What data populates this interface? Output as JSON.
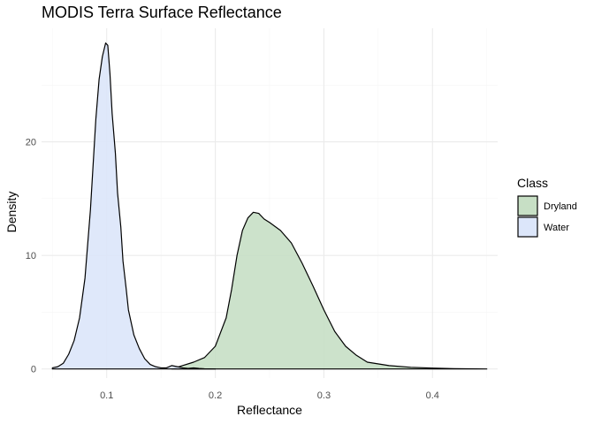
{
  "chart_data": {
    "type": "area",
    "title": "MODIS Terra Surface Reflectance",
    "xlabel": "Reflectance",
    "ylabel": "Density",
    "xlim": [
      0.04,
      0.46
    ],
    "ylim": [
      -0.8,
      30
    ],
    "x_ticks": [
      0.1,
      0.2,
      0.3,
      0.4
    ],
    "x_tick_labels": [
      "0.1",
      "0.2",
      "0.3",
      "0.4"
    ],
    "y_ticks": [
      0,
      10,
      20
    ],
    "y_tick_labels": [
      "0",
      "10",
      "20"
    ],
    "grid": true,
    "legend": {
      "title": "Class",
      "placement": "right",
      "entries": [
        "Dryland",
        "Water"
      ]
    },
    "series": [
      {
        "name": "Dryland",
        "fill": "#c7dfc5",
        "x": [
          0.16,
          0.17,
          0.18,
          0.19,
          0.2,
          0.21,
          0.215,
          0.22,
          0.225,
          0.23,
          0.235,
          0.24,
          0.245,
          0.25,
          0.26,
          0.27,
          0.28,
          0.29,
          0.3,
          0.31,
          0.32,
          0.33,
          0.34,
          0.36,
          0.38,
          0.4,
          0.42,
          0.45
        ],
        "values": [
          0.0,
          0.3,
          0.6,
          1.0,
          2.0,
          4.5,
          7.0,
          10.0,
          12.2,
          13.3,
          13.8,
          13.7,
          13.2,
          12.9,
          12.2,
          11.1,
          9.3,
          7.3,
          5.2,
          3.3,
          2.0,
          1.2,
          0.6,
          0.3,
          0.15,
          0.08,
          0.03,
          0.0
        ]
      },
      {
        "name": "Water",
        "fill": "#dce6fa",
        "x": [
          0.05,
          0.055,
          0.06,
          0.065,
          0.07,
          0.075,
          0.08,
          0.085,
          0.09,
          0.093,
          0.096,
          0.099,
          0.101,
          0.103,
          0.105,
          0.108,
          0.11,
          0.113,
          0.115,
          0.118,
          0.12,
          0.125,
          0.13,
          0.135,
          0.14,
          0.145,
          0.15,
          0.155,
          0.16,
          0.165,
          0.17,
          0.175,
          0.18,
          0.185,
          0.19,
          0.2
        ],
        "values": [
          0.1,
          0.2,
          0.5,
          1.3,
          2.5,
          4.5,
          8.0,
          14.0,
          22.0,
          25.5,
          27.5,
          28.7,
          28.5,
          26.0,
          22.5,
          19.0,
          15.5,
          12.5,
          9.5,
          7.0,
          5.2,
          3.0,
          1.8,
          0.9,
          0.4,
          0.2,
          0.1,
          0.1,
          0.3,
          0.2,
          0.1,
          0.05,
          0.1,
          0.05,
          0.02,
          0.0
        ]
      }
    ]
  },
  "colors": {
    "panel_grid_major": "#ebebeb",
    "panel_grid_minor": "#f5f5f5",
    "outline": "#000000"
  }
}
